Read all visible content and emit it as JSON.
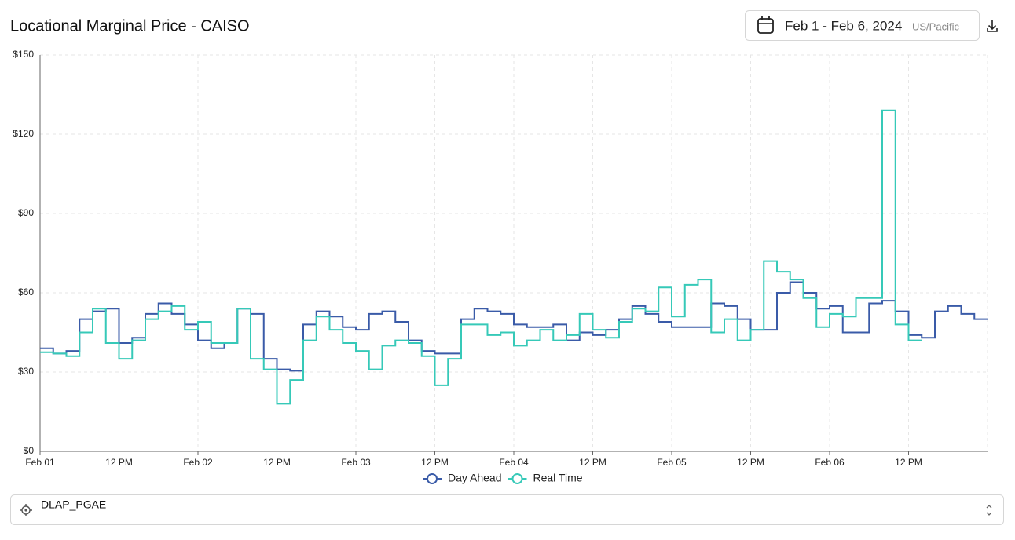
{
  "chart_data": {
    "type": "step-line",
    "title": "Locational Marginal Price - CAISO",
    "x": [
      0,
      2,
      4,
      6,
      8,
      10,
      12,
      14,
      16,
      18,
      20,
      22,
      24,
      26,
      28,
      30,
      32,
      34,
      36,
      38,
      40,
      42,
      44,
      46,
      48,
      50,
      52,
      54,
      56,
      58,
      60,
      62,
      64,
      66,
      68,
      70,
      72,
      74,
      76,
      78,
      80,
      82,
      84,
      86,
      88,
      90,
      92,
      94,
      96,
      98,
      100,
      102,
      104,
      106,
      108,
      110,
      112,
      114,
      116,
      118,
      120,
      122,
      124,
      126,
      128,
      130,
      132,
      134,
      136,
      138,
      140,
      142
    ],
    "series": [
      {
        "name": "Day Ahead",
        "color": "#3a5ba8",
        "values": [
          39,
          37,
          38,
          50,
          53,
          54,
          41,
          43,
          52,
          56,
          52,
          48,
          42,
          39,
          41,
          54,
          52,
          35,
          31,
          30.5,
          48,
          53,
          51,
          47,
          46,
          52,
          53,
          49,
          42,
          38,
          37,
          37,
          50,
          54,
          53,
          52,
          48,
          47,
          47,
          48,
          42,
          45,
          44,
          46,
          50,
          55,
          52,
          49,
          47,
          47,
          47,
          56,
          55,
          50,
          46,
          46,
          60,
          64,
          60,
          54,
          55,
          45,
          45,
          56,
          57,
          53,
          44,
          43,
          53,
          55,
          52,
          50
        ]
      },
      {
        "name": "Real Time",
        "color": "#36c9b8",
        "values": [
          37.5,
          37,
          36,
          45,
          54,
          41,
          35,
          42,
          50,
          53,
          55,
          46,
          49,
          41,
          41,
          54,
          35,
          31,
          18,
          27,
          42,
          51,
          46,
          41,
          38,
          31,
          40,
          42,
          41,
          36,
          25,
          35,
          48,
          48,
          44,
          45,
          40,
          42,
          46,
          42,
          44,
          52,
          46,
          43,
          49,
          54,
          53,
          62,
          51,
          63,
          65,
          45,
          50,
          42,
          46,
          72,
          68,
          65,
          58,
          47,
          52,
          51,
          58,
          58,
          129,
          48,
          42,
          null,
          null,
          null,
          null,
          null
        ]
      }
    ],
    "xlim": [
      0,
      144
    ],
    "xticks": [
      {
        "value": 0,
        "label": "Feb 01"
      },
      {
        "value": 12,
        "label": "12 PM"
      },
      {
        "value": 24,
        "label": "Feb 02"
      },
      {
        "value": 36,
        "label": "12 PM"
      },
      {
        "value": 48,
        "label": "Feb 03"
      },
      {
        "value": 60,
        "label": "12 PM"
      },
      {
        "value": 72,
        "label": "Feb 04"
      },
      {
        "value": 84,
        "label": "12 PM"
      },
      {
        "value": 96,
        "label": "Feb 05"
      },
      {
        "value": 108,
        "label": "12 PM"
      },
      {
        "value": 120,
        "label": "Feb 06"
      },
      {
        "value": 132,
        "label": "12 PM"
      }
    ],
    "ylim": [
      0,
      150
    ],
    "yticks": [
      {
        "value": 0,
        "label": "$0"
      },
      {
        "value": 30,
        "label": "$30"
      },
      {
        "value": 60,
        "label": "$60"
      },
      {
        "value": 90,
        "label": "$90"
      },
      {
        "value": 120,
        "label": "$120"
      },
      {
        "value": 150,
        "label": "$150"
      }
    ],
    "grid": true,
    "legend": "bottom"
  },
  "date_picker": {
    "range": "Feb 1 - Feb 6, 2024",
    "timezone": "US/Pacific"
  },
  "location_select": {
    "value": "DLAP_PGAE"
  }
}
